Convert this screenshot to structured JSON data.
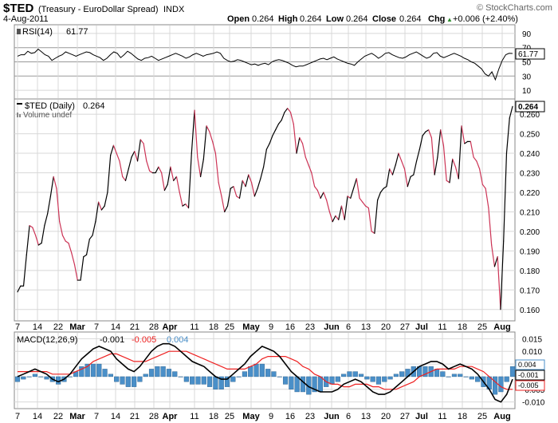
{
  "header": {
    "symbol": "$TED",
    "name": "(Treasury - EuroDollar Spread)",
    "exchange": "INDX",
    "date": "4-Aug-2011",
    "open_label": "Open",
    "open": "0.264",
    "high_label": "High",
    "high": "0.264",
    "low_label": "Low",
    "low": "0.264",
    "close_label": "Close",
    "close": "0.264",
    "chg_label": "Chg",
    "chg": "+0.006 (+2.40%)",
    "arrow_glyph": "▲",
    "watermark": "© StockCharts.com"
  },
  "colors": {
    "up": "#000000",
    "down": "#cc3355",
    "macd_line": "#000000",
    "signal_line": "#ee2222",
    "histogram": "#4a8fc8",
    "grid": "#d8d8d8",
    "grid_strong": "#999999",
    "rsi_value_color": "#000000",
    "macd_hist_label_color": "#4a8fc8",
    "macd_signal_label_color": "#ee2222"
  },
  "chart_data": [
    {
      "type": "line",
      "title": "RSI(14) 61.77",
      "legend_label": "RSI(14)",
      "current_value": "61.77",
      "ylim": [
        0,
        100
      ],
      "yticks": [
        "90",
        "70",
        "50",
        "30",
        "10"
      ],
      "reference_lines": [
        70,
        50,
        30
      ],
      "values": [
        58,
        60,
        60,
        65,
        62,
        63,
        68,
        64,
        60,
        58,
        52,
        55,
        58,
        60,
        64,
        62,
        60,
        58,
        60,
        62,
        64,
        63,
        60,
        58,
        56,
        52,
        55,
        60,
        64,
        62,
        56,
        60,
        65,
        62,
        58,
        54,
        52,
        55,
        56,
        58,
        55,
        52,
        54,
        56,
        58,
        60,
        62,
        60,
        58,
        55,
        57,
        60,
        62,
        60,
        58,
        60,
        61,
        62,
        64,
        62,
        55,
        52,
        50,
        51,
        53,
        52,
        50,
        48,
        46,
        47,
        45,
        47,
        48,
        46,
        50,
        52,
        53,
        52,
        50,
        48,
        45,
        43,
        44,
        44,
        46,
        48,
        50,
        52,
        54,
        55,
        53,
        55,
        57,
        54,
        52,
        50,
        48,
        47,
        45,
        50,
        54,
        58,
        60,
        62,
        59,
        55,
        58,
        62,
        63,
        60,
        58,
        56,
        55,
        57,
        60,
        62,
        64,
        61,
        58,
        55,
        57,
        62,
        63,
        58,
        56,
        58,
        60,
        62,
        60,
        58,
        55,
        53,
        50,
        48,
        44,
        40,
        33,
        30,
        36,
        25,
        40,
        52,
        60,
        62,
        61.77
      ]
    },
    {
      "type": "line",
      "title": "$TED (Daily) 0.264",
      "legend_label": "$TED (Daily)",
      "current_value": "0.264",
      "volume_label": "Volume undef",
      "ylim": [
        0.155,
        0.267
      ],
      "yticks": [
        "0.260",
        "0.250",
        "0.240",
        "0.230",
        "0.220",
        "0.210",
        "0.200",
        "0.190",
        "0.180",
        "0.170",
        "0.160"
      ],
      "values": [
        0.169,
        0.172,
        0.172,
        0.188,
        0.203,
        0.202,
        0.198,
        0.193,
        0.194,
        0.203,
        0.209,
        0.218,
        0.228,
        0.222,
        0.205,
        0.198,
        0.195,
        0.194,
        0.189,
        0.183,
        0.175,
        0.175,
        0.187,
        0.188,
        0.196,
        0.198,
        0.205,
        0.215,
        0.211,
        0.213,
        0.22,
        0.239,
        0.244,
        0.24,
        0.236,
        0.228,
        0.226,
        0.232,
        0.238,
        0.241,
        0.236,
        0.247,
        0.245,
        0.236,
        0.231,
        0.23,
        0.23,
        0.233,
        0.23,
        0.221,
        0.224,
        0.233,
        0.226,
        0.228,
        0.22,
        0.213,
        0.214,
        0.212,
        0.24,
        0.262,
        0.238,
        0.228,
        0.237,
        0.254,
        0.251,
        0.246,
        0.24,
        0.225,
        0.218,
        0.21,
        0.213,
        0.222,
        0.223,
        0.218,
        0.217,
        0.226,
        0.223,
        0.229,
        0.225,
        0.218,
        0.222,
        0.227,
        0.233,
        0.242,
        0.245,
        0.249,
        0.252,
        0.255,
        0.257,
        0.261,
        0.263,
        0.261,
        0.255,
        0.24,
        0.248,
        0.245,
        0.238,
        0.234,
        0.23,
        0.223,
        0.221,
        0.217,
        0.22,
        0.216,
        0.21,
        0.205,
        0.208,
        0.206,
        0.213,
        0.206,
        0.218,
        0.217,
        0.222,
        0.227,
        0.217,
        0.215,
        0.213,
        0.212,
        0.2,
        0.199,
        0.216,
        0.22,
        0.222,
        0.223,
        0.232,
        0.229,
        0.234,
        0.24,
        0.236,
        0.232,
        0.223,
        0.228,
        0.229,
        0.236,
        0.242,
        0.249,
        0.251,
        0.252,
        0.248,
        0.229,
        0.238,
        0.252,
        0.244,
        0.226,
        0.225,
        0.237,
        0.233,
        0.227,
        0.254,
        0.245,
        0.246,
        0.246,
        0.238,
        0.236,
        0.232,
        0.224,
        0.222,
        0.212,
        0.193,
        0.182,
        0.187,
        0.16,
        0.195,
        0.24,
        0.258,
        0.264
      ],
      "x_tick_labels": [
        "7",
        "14",
        "22",
        "Mar",
        "7",
        "14",
        "21",
        "28",
        "Apr",
        "11",
        "18",
        "25",
        "May",
        "9",
        "16",
        "23",
        "Jun",
        "6",
        "13",
        "20",
        "27",
        "Jul",
        "11",
        "18",
        "25",
        "Aug"
      ]
    },
    {
      "type": "line",
      "title": "MACD(12,26,9) -0.001, -0.005, 0.004",
      "legend_label": "MACD(12,26,9)",
      "macd_value": "-0.001",
      "signal_value": "-0.005",
      "hist_value": "0.004",
      "ylim": [
        -0.012,
        0.017
      ],
      "yticks": [
        "0.015",
        "0.010",
        "0.005",
        "-0.005",
        "-0.010"
      ],
      "value_badges": [
        "0.004",
        "-0.001",
        "-0.005"
      ],
      "series": [
        {
          "name": "MACD",
          "values": [
            0.0,
            0.001,
            0.002,
            0.003,
            0.002,
            0.001,
            -0.001,
            -0.002,
            -0.001,
            0.001,
            0.004,
            0.007,
            0.009,
            0.011,
            0.012,
            0.011,
            0.01,
            0.007,
            0.005,
            0.003,
            0.002,
            0.004,
            0.007,
            0.01,
            0.012,
            0.013,
            0.013,
            0.012,
            0.01,
            0.008,
            0.006,
            0.005,
            0.004,
            0.002,
            0.0,
            -0.001,
            -0.001,
            0.001,
            0.003,
            0.005,
            0.008,
            0.01,
            0.012,
            0.011,
            0.01,
            0.008,
            0.005,
            0.002,
            0.0,
            -0.002,
            -0.004,
            -0.005,
            -0.006,
            -0.006,
            -0.006,
            -0.005,
            -0.003,
            -0.002,
            -0.001,
            -0.002,
            -0.004,
            -0.006,
            -0.007,
            -0.007,
            -0.006,
            -0.004,
            -0.002,
            0.0,
            0.002,
            0.004,
            0.005,
            0.006,
            0.006,
            0.005,
            0.003,
            0.004,
            0.005,
            0.004,
            0.003,
            0.001,
            -0.002,
            -0.005,
            -0.009,
            -0.01,
            -0.007,
            -0.001
          ]
        },
        {
          "name": "Signal",
          "values": [
            0.002,
            0.002,
            0.002,
            0.002,
            0.002,
            0.002,
            0.001,
            0.001,
            0.001,
            0.001,
            0.002,
            0.003,
            0.004,
            0.006,
            0.007,
            0.008,
            0.009,
            0.009,
            0.008,
            0.007,
            0.006,
            0.006,
            0.006,
            0.007,
            0.008,
            0.009,
            0.01,
            0.01,
            0.01,
            0.01,
            0.009,
            0.008,
            0.007,
            0.006,
            0.005,
            0.004,
            0.003,
            0.003,
            0.003,
            0.003,
            0.004,
            0.005,
            0.007,
            0.008,
            0.008,
            0.008,
            0.008,
            0.007,
            0.006,
            0.004,
            0.003,
            0.001,
            0.0,
            -0.002,
            -0.003,
            -0.003,
            -0.004,
            -0.004,
            -0.003,
            -0.003,
            -0.003,
            -0.004,
            -0.004,
            -0.005,
            -0.005,
            -0.005,
            -0.004,
            -0.003,
            -0.002,
            0.0,
            0.001,
            0.002,
            0.003,
            0.003,
            0.003,
            0.003,
            0.004,
            0.004,
            0.004,
            0.003,
            0.002,
            0.0,
            -0.002,
            -0.004,
            -0.005,
            -0.005
          ]
        },
        {
          "name": "Histogram",
          "values": [
            -0.002,
            -0.001,
            0.0,
            0.001,
            0.0,
            -0.001,
            -0.002,
            -0.003,
            -0.002,
            0.0,
            0.002,
            0.004,
            0.005,
            0.005,
            0.005,
            0.003,
            0.001,
            -0.002,
            -0.003,
            -0.004,
            -0.004,
            -0.002,
            0.001,
            0.003,
            0.004,
            0.004,
            0.003,
            0.002,
            0.0,
            -0.002,
            -0.003,
            -0.003,
            -0.003,
            -0.004,
            -0.005,
            -0.005,
            -0.004,
            -0.002,
            0.0,
            0.002,
            0.004,
            0.005,
            0.005,
            0.003,
            0.002,
            0.0,
            -0.003,
            -0.005,
            -0.006,
            -0.006,
            -0.007,
            -0.006,
            -0.006,
            -0.004,
            -0.003,
            -0.002,
            0.001,
            0.002,
            0.002,
            0.001,
            -0.001,
            -0.002,
            -0.003,
            -0.002,
            -0.001,
            0.001,
            0.002,
            0.003,
            0.004,
            0.004,
            0.004,
            0.004,
            0.003,
            0.002,
            0.0,
            0.001,
            0.001,
            0.0,
            -0.001,
            -0.002,
            -0.004,
            -0.005,
            -0.007,
            -0.006,
            -0.002,
            0.004
          ]
        }
      ],
      "x_tick_labels": [
        "7",
        "14",
        "22",
        "Mar",
        "7",
        "14",
        "21",
        "28",
        "Apr",
        "11",
        "18",
        "25",
        "May",
        "9",
        "16",
        "23",
        "Jun",
        "6",
        "13",
        "20",
        "27",
        "Jul",
        "11",
        "18",
        "25",
        "Aug"
      ]
    }
  ]
}
